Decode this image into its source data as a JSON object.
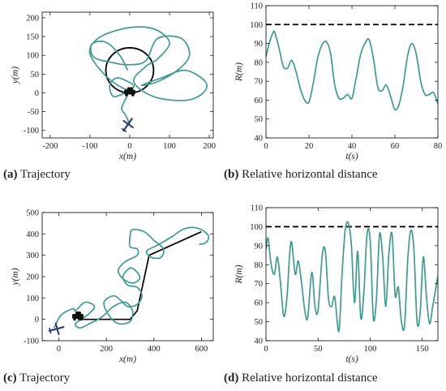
{
  "colors": {
    "trajectory": "#3d9c8e",
    "path": "#000000",
    "dashed": "#000000",
    "aircraft": "#2b3a7a",
    "vehicle": "#111111"
  },
  "captions": [
    {
      "tag": "(a)",
      "text": " Trajectory"
    },
    {
      "tag": "(b)",
      "text": " Relative horizontal distance"
    },
    {
      "tag": "(c)",
      "text": " Trajectory"
    },
    {
      "tag": "(d)",
      "text": " Relative horizontal distance"
    }
  ],
  "chart_data": [
    {
      "panel": "a",
      "type": "line",
      "title": "",
      "xlabel": "x(m)",
      "ylabel": "y(m)",
      "xlim": [
        -220,
        210
      ],
      "ylim": [
        -120,
        215
      ],
      "xticks": [
        -200,
        -100,
        0,
        100,
        200
      ],
      "yticks": [
        -100,
        -50,
        0,
        50,
        100,
        150,
        200
      ],
      "grid": false,
      "series": [
        {
          "role": "vehicle orbit",
          "kind": "circle",
          "center": [
            0,
            60
          ],
          "radius": 60
        },
        {
          "role": "aircraft trajectory",
          "x": [
            -5,
            -25,
            -60,
            -95,
            -90,
            -40,
            -5,
            40,
            70,
            130,
            150,
            120,
            70,
            30,
            80,
            140,
            190,
            185,
            140,
            60,
            10,
            40,
            70,
            100,
            80,
            40,
            -20,
            -80,
            -100,
            -60,
            -10,
            10,
            -30,
            -50,
            -40,
            -5,
            -20,
            -10,
            0
          ],
          "y": [
            60,
            100,
            135,
            130,
            95,
            80,
            75,
            85,
            145,
            145,
            100,
            60,
            30,
            20,
            40,
            60,
            30,
            0,
            -20,
            -10,
            30,
            70,
            90,
            130,
            160,
            175,
            170,
            145,
            105,
            45,
            10,
            20,
            40,
            20,
            -10,
            0,
            -40,
            -60,
            -85
          ]
        },
        {
          "role": "vehicle",
          "kind": "marker",
          "x": 0,
          "y": 0
        },
        {
          "role": "aircraft",
          "kind": "marker",
          "x": -5,
          "y": -85
        }
      ]
    },
    {
      "panel": "b",
      "type": "line",
      "title": "",
      "xlabel": "t(s)",
      "ylabel": "R(m)",
      "xlim": [
        0,
        80
      ],
      "ylim": [
        40,
        110
      ],
      "xticks": [
        0,
        20,
        40,
        60,
        80
      ],
      "yticks": [
        40,
        50,
        60,
        70,
        80,
        90,
        100,
        110
      ],
      "grid": false,
      "reference_line": 100,
      "series": [
        {
          "x": [
            0,
            1.5,
            3,
            4,
            6,
            8,
            10,
            12,
            14,
            16,
            18,
            20,
            22,
            24,
            26,
            28,
            30,
            32,
            34,
            36,
            38,
            40,
            42,
            44,
            46,
            48,
            50,
            52,
            54,
            56,
            58,
            60,
            62,
            64,
            66,
            68,
            70,
            72,
            74,
            76,
            78,
            80
          ],
          "y": [
            83,
            90,
            95,
            96,
            88,
            78,
            77,
            81,
            75,
            66,
            60,
            59,
            69,
            82,
            89,
            91,
            85,
            68,
            61,
            61,
            63,
            61,
            72,
            84,
            90,
            92,
            82,
            67,
            65,
            68,
            62,
            55,
            58,
            69,
            84,
            90,
            84,
            70,
            63,
            63,
            64,
            58
          ]
        }
      ]
    },
    {
      "panel": "c",
      "type": "line",
      "title": "",
      "xlabel": "x(m)",
      "ylabel": "y(m)",
      "xlim": [
        -70,
        650
      ],
      "ylim": [
        -100,
        500
      ],
      "xticks": [
        0,
        200,
        400,
        600
      ],
      "yticks": [
        -100,
        0,
        100,
        200,
        300,
        400,
        500
      ],
      "grid": false,
      "series": [
        {
          "role": "vehicle path",
          "x": [
            80,
            300,
            330,
            380,
            600
          ],
          "y": [
            0,
            0,
            40,
            300,
            410
          ]
        },
        {
          "role": "aircraft trajectory",
          "x": [
            -20,
            10,
            60,
            70,
            110,
            150,
            120,
            70,
            90,
            130,
            180,
            230,
            280,
            310,
            300,
            250,
            210,
            190,
            230,
            260,
            290,
            330,
            350,
            330,
            290,
            270,
            300,
            330,
            340,
            310,
            270,
            250,
            280,
            330,
            330,
            300,
            300,
            310,
            360,
            400,
            440,
            430,
            390,
            370,
            420,
            480,
            520,
            560,
            600,
            630,
            620,
            590
          ],
          "y": [
            -40,
            20,
            50,
            40,
            80,
            60,
            20,
            -20,
            -40,
            -20,
            10,
            60,
            80,
            40,
            -10,
            -20,
            20,
            80,
            110,
            90,
            60,
            70,
            110,
            150,
            160,
            200,
            240,
            220,
            190,
            170,
            190,
            230,
            270,
            300,
            330,
            340,
            390,
            420,
            410,
            370,
            330,
            290,
            290,
            320,
            350,
            390,
            420,
            430,
            420,
            390,
            360,
            350
          ]
        },
        {
          "role": "vehicle",
          "kind": "marker",
          "x": 80,
          "y": 10
        },
        {
          "role": "aircraft",
          "kind": "marker",
          "x": -10,
          "y": -45
        }
      ]
    },
    {
      "panel": "d",
      "type": "line",
      "title": "",
      "xlabel": "t(s)",
      "ylabel": "R(m)",
      "xlim": [
        0,
        165
      ],
      "ylim": [
        40,
        110
      ],
      "xticks": [
        0,
        50,
        100,
        150
      ],
      "yticks": [
        40,
        50,
        60,
        70,
        80,
        90,
        100,
        110
      ],
      "grid": false,
      "reference_line": 100,
      "series": [
        {
          "x": [
            0,
            2,
            5,
            8,
            11,
            14,
            17,
            20,
            24,
            28,
            31,
            34,
            37,
            40,
            44,
            47,
            50,
            54,
            57,
            60,
            63,
            66,
            70,
            73,
            76,
            79,
            82,
            85,
            88,
            91,
            94,
            97,
            100,
            103,
            106,
            109,
            112,
            115,
            118,
            121,
            124,
            127,
            130,
            133,
            136,
            139,
            142,
            145,
            148,
            151,
            154,
            157,
            160,
            165
          ],
          "y": [
            88,
            94,
            80,
            75,
            84,
            70,
            53,
            62,
            92,
            75,
            82,
            71,
            57,
            52,
            76,
            58,
            56,
            85,
            87,
            62,
            58,
            63,
            45,
            75,
            98,
            102,
            90,
            60,
            87,
            52,
            66,
            96,
            93,
            52,
            62,
            96,
            84,
            58,
            86,
            96,
            64,
            68,
            50,
            48,
            82,
            98,
            88,
            50,
            55,
            84,
            63,
            49,
            58,
            74
          ]
        }
      ]
    }
  ]
}
